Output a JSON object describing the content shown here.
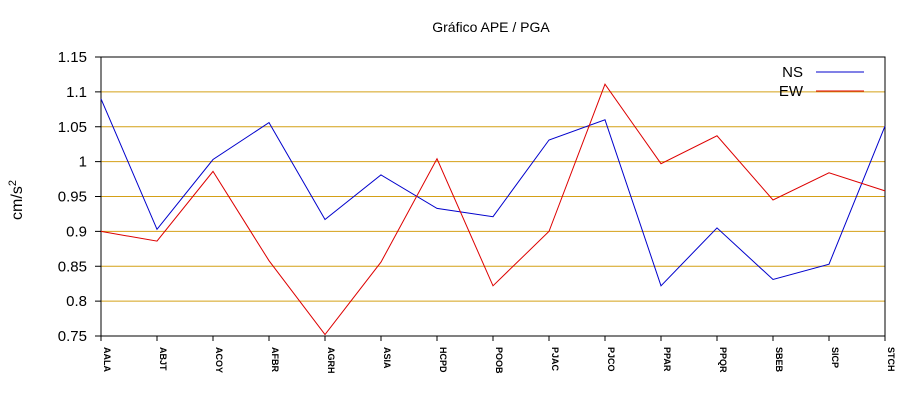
{
  "chart_data": {
    "type": "line",
    "title": "Gráfico  APE / PGA",
    "ylabel": "cm/s",
    "ylabel_superscript": "2",
    "xlabel": "",
    "categories": [
      "AALA",
      "ABJT",
      "ACOY",
      "AFBR",
      "AGRH",
      "ASIA",
      "HCPD",
      "POOB",
      "PJAC",
      "PJCO",
      "PPAR",
      "PPQR",
      "SBEB",
      "SICP",
      "STCH"
    ],
    "ylim": [
      0.75,
      1.15
    ],
    "yticks": [
      "0.75",
      "0.8",
      "0.85",
      "0.9",
      "0.95",
      "1",
      "1.05",
      "1.1",
      "1.15"
    ],
    "grid": "horizontal",
    "grid_color": "#d4a017",
    "legend_position": "top-right",
    "series": [
      {
        "name": "NS",
        "color": "#0000cc",
        "values": [
          1.09,
          0.903,
          1.003,
          1.056,
          0.917,
          0.981,
          0.933,
          0.921,
          1.031,
          1.06,
          0.822,
          0.905,
          0.831,
          0.853,
          1.051
        ]
      },
      {
        "name": "EW",
        "color": "#dd0000",
        "values": [
          0.9,
          0.886,
          0.986,
          0.858,
          0.752,
          0.856,
          1.004,
          0.822,
          0.9,
          1.111,
          0.997,
          1.037,
          0.945,
          0.984,
          0.958
        ]
      }
    ]
  }
}
